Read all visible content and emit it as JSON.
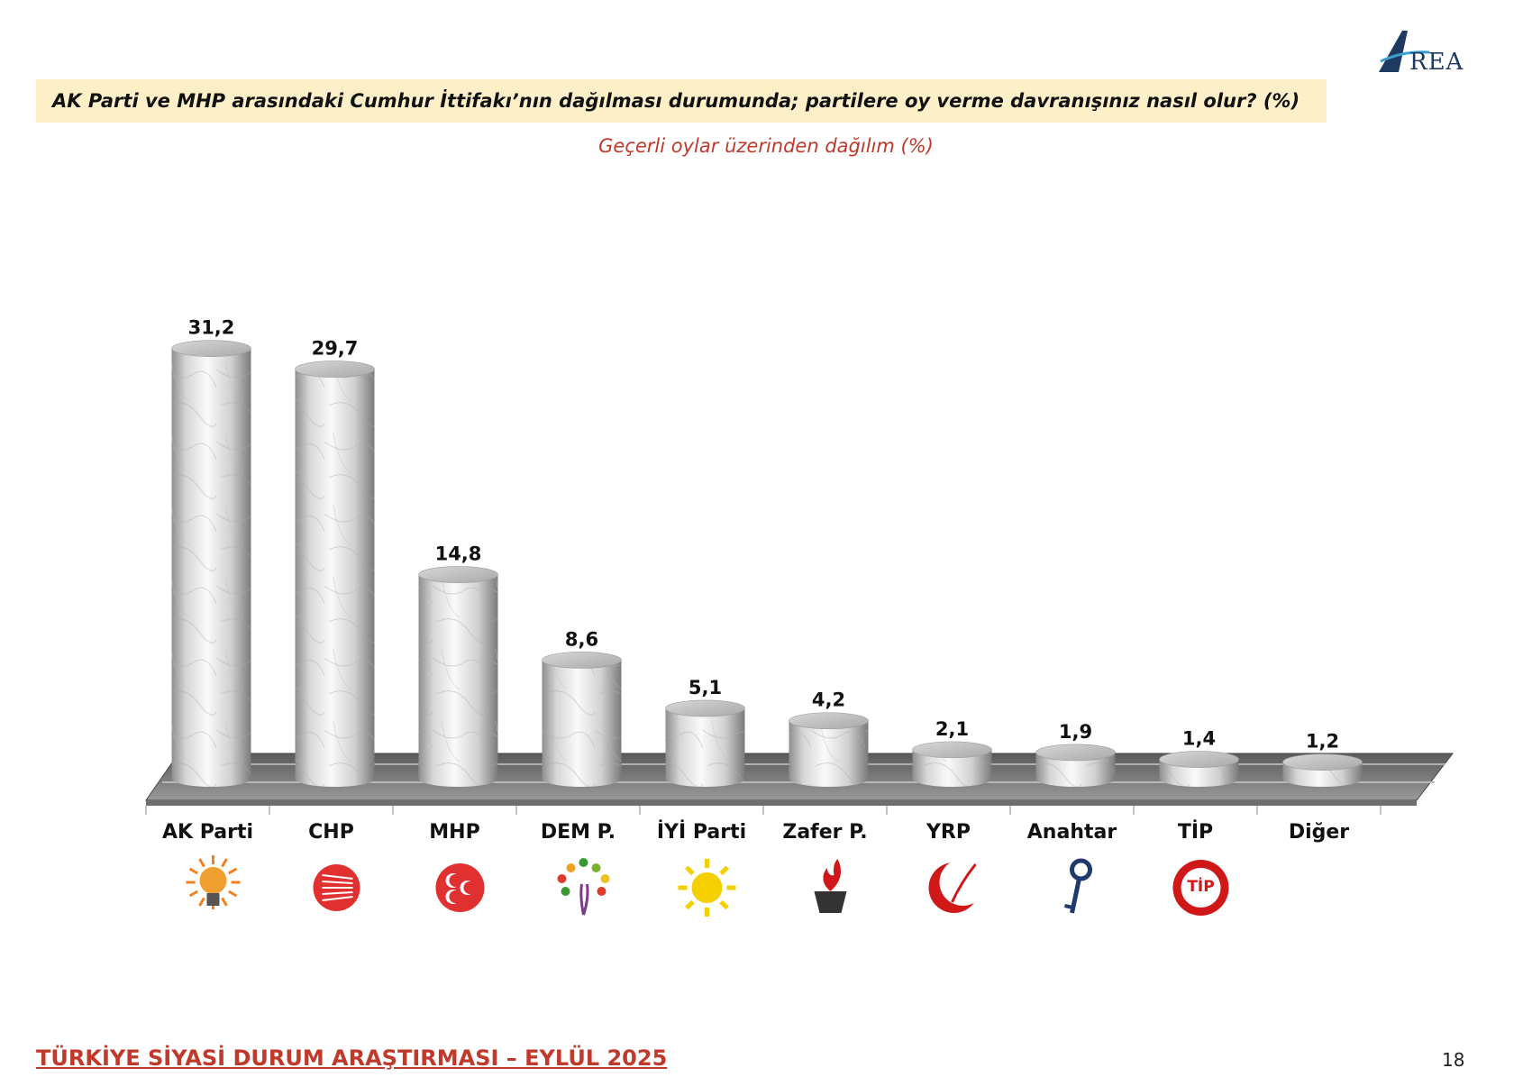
{
  "header": {
    "logo_text": "REA",
    "title": "AK Parti ve MHP arasındaki Cumhur İttifakı’nın dağılması durumunda; partilere oy verme davranışınız nasıl olur? (%)",
    "subtitle": "Geçerli oylar üzerinden dağılım (%)"
  },
  "chart_data": {
    "type": "bar",
    "categories": [
      "AK Parti",
      "CHP",
      "MHP",
      "DEM P.",
      "İYİ Parti",
      "Zafer P.",
      "YRP",
      "Anahtar",
      "TİP",
      "Diğer"
    ],
    "values": [
      31.2,
      29.7,
      14.8,
      8.6,
      5.1,
      4.2,
      2.1,
      1.9,
      1.4,
      1.2
    ],
    "value_labels": [
      "31,2",
      "29,7",
      "14,8",
      "8,6",
      "5,1",
      "4,2",
      "2,1",
      "1,9",
      "1,4",
      "1,2"
    ],
    "icons": [
      "lightbulb-icon",
      "six-arrows-icon",
      "three-crescents-icon",
      "tree-icon",
      "sun-icon",
      "flame-icon",
      "crescent-wheat-icon",
      "key-icon",
      "tip-seal-icon",
      ""
    ],
    "icon_colors": [
      "#f0a030",
      "#e03030",
      "#e03030",
      "#7a9a30",
      "#f5d000",
      "#333333",
      "#d01818",
      "#1f3a6b",
      "#d01818",
      ""
    ],
    "style": "3d-cylinder"
  },
  "tip_icon_text": "TİP",
  "footer": {
    "title": "TÜRKİYE SİYASİ DURUM ARAŞTIRMASI – EYLÜL 2025",
    "page": "18"
  }
}
